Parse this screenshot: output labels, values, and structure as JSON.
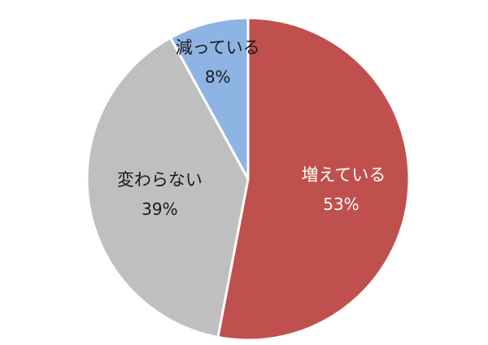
{
  "chart_data": {
    "type": "pie",
    "categories": [
      "増えている",
      "変わらない",
      "減っている"
    ],
    "values": [
      53,
      39,
      8
    ],
    "value_labels": [
      "53%",
      "39%",
      "8%"
    ],
    "colors": [
      "#c0504d",
      "#bfbfbf",
      "#8db4e2"
    ],
    "label_colors": [
      "#ffffff",
      "#1a1a1a",
      "#1a1a1a"
    ],
    "start_angle_deg": 0,
    "direction": "clockwise",
    "title": "",
    "legend": "none"
  }
}
